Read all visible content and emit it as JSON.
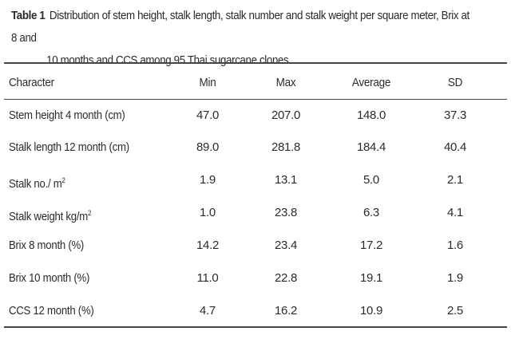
{
  "caption": {
    "label": "Table 1",
    "line1": "Distribution of stem height, stalk length, stalk number and stalk weight per square meter, Brix at 8 and",
    "line2": "10 months and CCS among 95 Thai sugarcane clones."
  },
  "table": {
    "headers": {
      "character": "Character",
      "min": "Min",
      "max": "Max",
      "average": "Average",
      "sd": "SD"
    },
    "rows": [
      {
        "character": "Stem height 4 month (cm)",
        "sup": "",
        "min": "47.0",
        "max": "207.0",
        "average": "148.0",
        "sd": "37.3"
      },
      {
        "character": "Stalk length 12 month (cm)",
        "sup": "",
        "min": "89.0",
        "max": "281.8",
        "average": "184.4",
        "sd": "40.4"
      },
      {
        "character": "Stalk no./ m",
        "sup": "2",
        "min": "1.9",
        "max": "13.1",
        "average": "5.0",
        "sd": "2.1"
      },
      {
        "character": "Stalk weight kg/m",
        "sup": "2",
        "min": "1.0",
        "max": "23.8",
        "average": "6.3",
        "sd": "4.1"
      },
      {
        "character": "Brix 8 month (%)",
        "sup": "",
        "min": "14.2",
        "max": "23.4",
        "average": "17.2",
        "sd": "1.6"
      },
      {
        "character": "Brix 10 month (%)",
        "sup": "",
        "min": "11.0",
        "max": "22.8",
        "average": "19.1",
        "sd": "1.9"
      },
      {
        "character": "CCS 12 month (%)",
        "sup": "",
        "min": "4.7",
        "max": "16.2",
        "average": "10.9",
        "sd": "2.5"
      }
    ]
  }
}
